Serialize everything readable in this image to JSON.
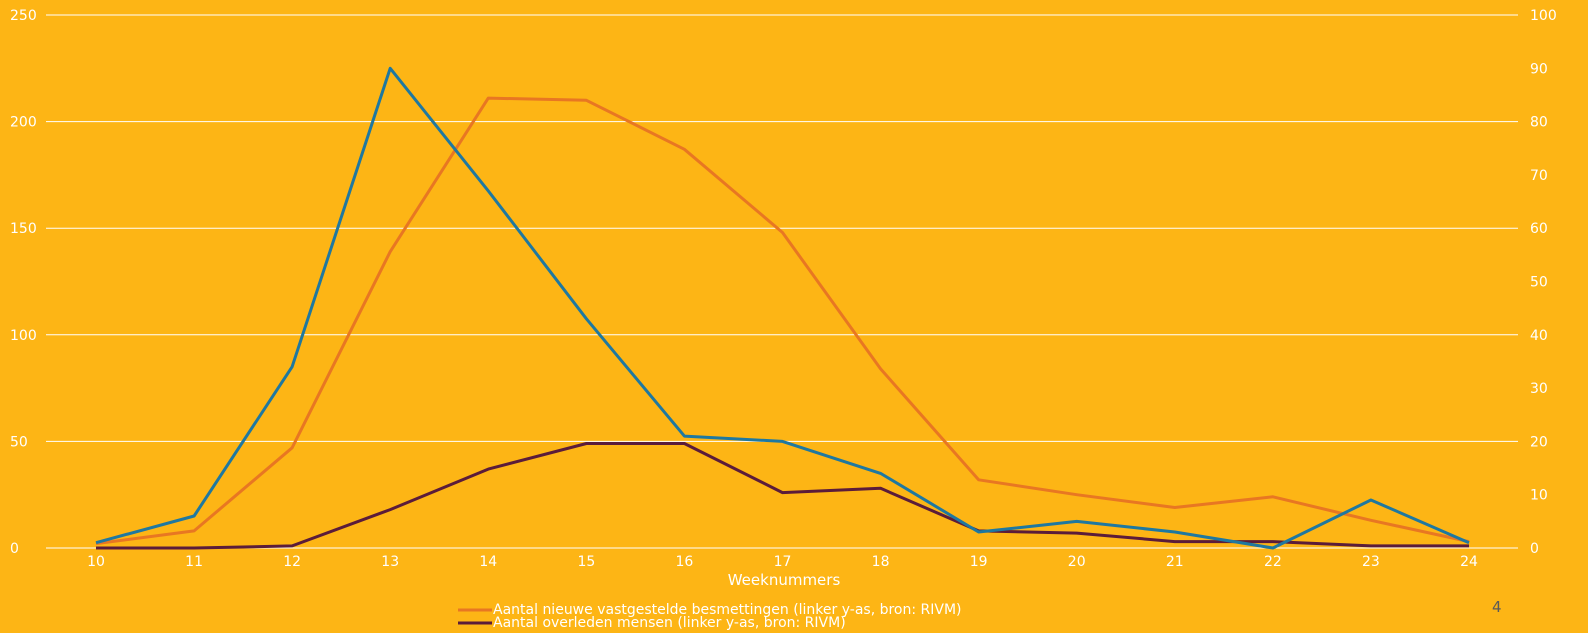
{
  "page_number": "4",
  "chart_data": {
    "type": "line",
    "title": "",
    "xlabel": "Weeknummers",
    "ylabel": "",
    "y2label": "",
    "categories": [
      "10",
      "11",
      "12",
      "13",
      "14",
      "15",
      "16",
      "17",
      "18",
      "19",
      "20",
      "21",
      "22",
      "23",
      "24"
    ],
    "ylim": [
      0,
      250
    ],
    "y_ticks": [
      0,
      50,
      100,
      150,
      200,
      250
    ],
    "y2lim": [
      0,
      100
    ],
    "y2_ticks": [
      0,
      10,
      20,
      30,
      40,
      50,
      60,
      70,
      80,
      90,
      100
    ],
    "grid": true,
    "legend_position": "bottom-center",
    "series": [
      {
        "name": "Aantal nieuwe vastgestelde besmettingen  (linker y-as, bron: RIVM)",
        "axis": "left",
        "color": "#E87722",
        "values": [
          2,
          8,
          47,
          139,
          211,
          210,
          187,
          148,
          84,
          32,
          25,
          19,
          24,
          13,
          3
        ]
      },
      {
        "name": "Aantal overleden mensen  (linker y-as, bron: RIVM)",
        "axis": "left",
        "color": "#5B1C3A",
        "values": [
          0,
          0,
          1,
          18,
          37,
          49,
          49,
          26,
          28,
          8,
          7,
          3,
          3,
          1,
          1
        ]
      },
      {
        "name": "",
        "axis": "right",
        "color": "#1F78A0",
        "values": [
          1,
          6,
          34,
          90,
          67,
          43,
          21,
          20,
          14,
          3,
          5,
          3,
          0,
          9,
          1
        ]
      }
    ]
  }
}
